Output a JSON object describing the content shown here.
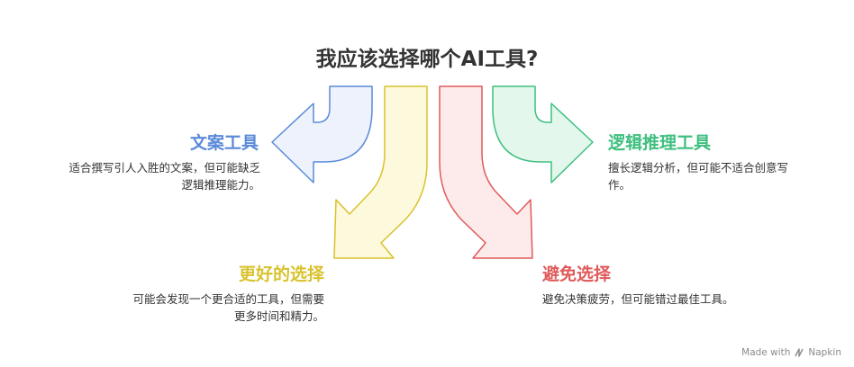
{
  "title": "我应该选择哪个AI工具?",
  "options": [
    {
      "label": "文案工具",
      "desc_lines": [
        "适合撰写引人入胜的文案，但可能缺乏",
        "逻辑推理能力。"
      ],
      "color": "#5b8ad8",
      "fill": "#edf2fc"
    },
    {
      "label": "更好的选择",
      "desc_lines": [
        "可能会发现一个更合适的工具，但需要",
        "更多时间和精力。"
      ],
      "color": "#d9c22e",
      "fill": "#fdf9dc"
    },
    {
      "label": "避免选择",
      "desc_lines": [
        "避免决策疲劳，但可能错过最佳工具。"
      ],
      "color": "#e05a5a",
      "fill": "#fdeaea"
    },
    {
      "label": "逻辑推理工具",
      "desc_lines": [
        "擅长逻辑分析，但可能不适合创意写",
        "作。"
      ],
      "color": "#3fbf7f",
      "fill": "#e3f7ec"
    }
  ],
  "footer": {
    "text": "Made with",
    "brand": "Napkin"
  }
}
